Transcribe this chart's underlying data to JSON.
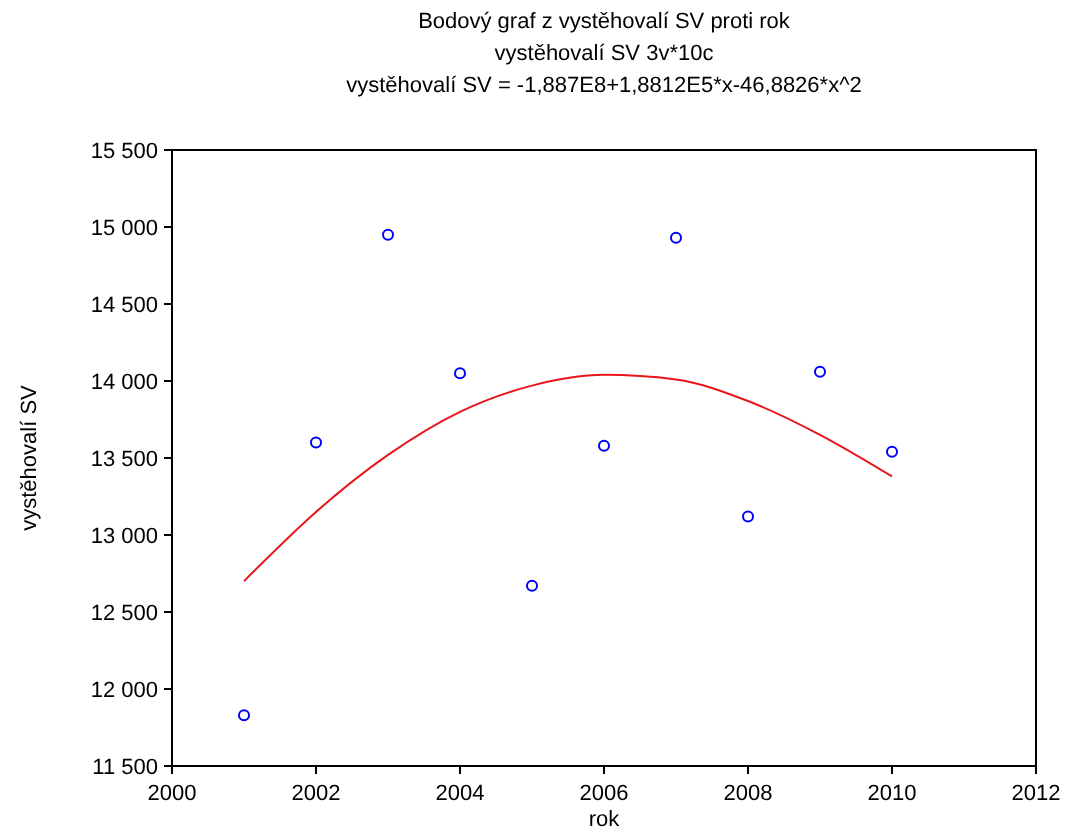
{
  "chart_data": {
    "type": "scatter",
    "title": "Bodový graf z vystěhovalí SV proti rok",
    "subtitle": "vystěhovalí SV 3v*10c",
    "annotations": [
      "vystěhovalí SV = -1,887E8+1,8812E5*x-46,8826*x^2"
    ],
    "xlabel": "rok",
    "ylabel": "vystěhovalí SV",
    "xlim": [
      2000,
      2012
    ],
    "xticks": [
      2000,
      2002,
      2004,
      2006,
      2008,
      2010,
      2012
    ],
    "ylim": [
      11500,
      15500
    ],
    "yticks": [
      {
        "value": 11500,
        "label": "11 500"
      },
      {
        "value": 12000,
        "label": "12 000"
      },
      {
        "value": 12500,
        "label": "12 500"
      },
      {
        "value": 13000,
        "label": "13 000"
      },
      {
        "value": 13500,
        "label": "13 500"
      },
      {
        "value": 14000,
        "label": "14 000"
      },
      {
        "value": 14500,
        "label": "14 500"
      },
      {
        "value": 15000,
        "label": "15 000"
      },
      {
        "value": 15500,
        "label": "15 500"
      }
    ],
    "grid": false,
    "series": [
      {
        "marker": "circle",
        "color": "#0000ff",
        "x": [
          2001,
          2002,
          2003,
          2004,
          2005,
          2006,
          2007,
          2008,
          2009,
          2010
        ],
        "values": [
          11830,
          13600,
          14950,
          14050,
          12670,
          13580,
          14930,
          13120,
          14060,
          13540
        ]
      },
      {
        "type": "line",
        "marker": "none",
        "color": "#e8161b",
        "line_style": "solid",
        "x": [
          2001,
          2002,
          2003,
          2004,
          2005,
          2006,
          2007,
          2008,
          2009,
          2010
        ],
        "values": [
          12700,
          13150,
          13520,
          13800,
          13970,
          14040,
          14010,
          13870,
          13650,
          13380
        ]
      }
    ]
  }
}
